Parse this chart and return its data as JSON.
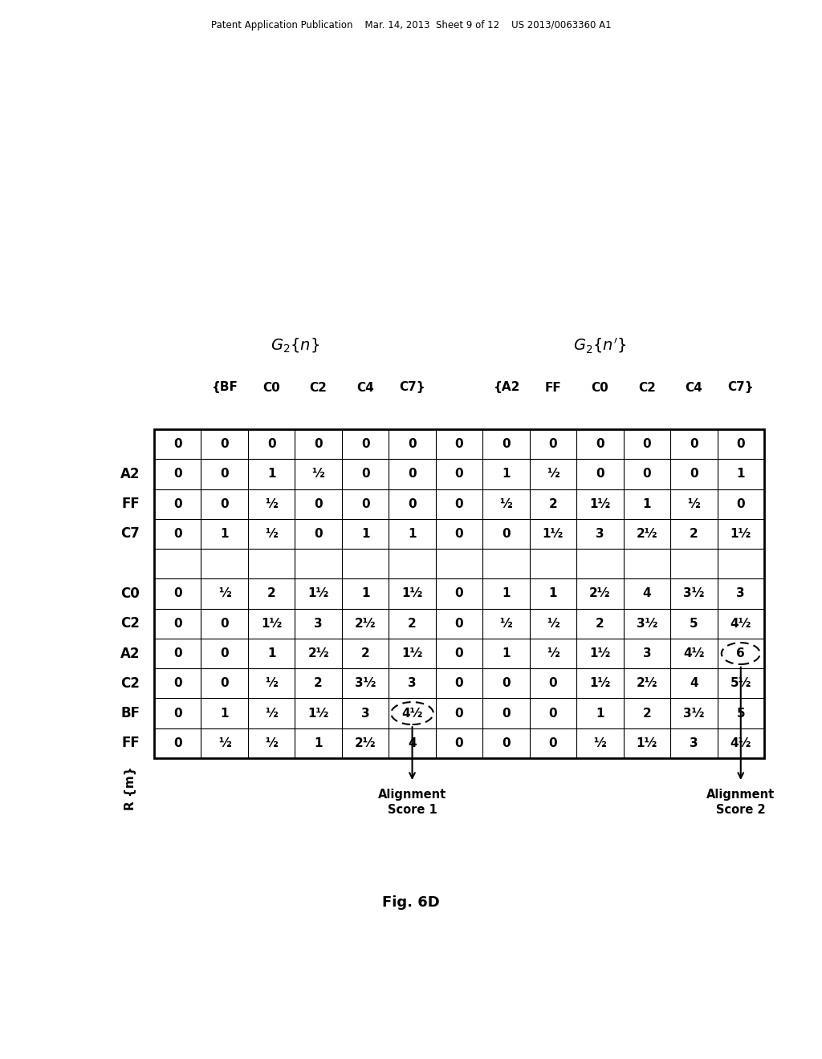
{
  "title_header_left": "Patent Application Publication",
  "title_header_mid": "Mar. 14, 2013  Sheet 9 of 12",
  "title_header_right": "US 2013/0063360 A1",
  "fig_label": "Fig. 6D",
  "col_headers_left": [
    "{BF",
    "C0",
    "C2",
    "C4",
    "C7}"
  ],
  "col_headers_right": [
    "{A2",
    "FF",
    "C0",
    "C2",
    "C4",
    "C7}"
  ],
  "row_headers": [
    "",
    "A2",
    "FF",
    "C7",
    "",
    "C0",
    "C2",
    "A2",
    "C2",
    "BF",
    "FF"
  ],
  "table_data": [
    [
      "0",
      "0",
      "0",
      "0",
      "0",
      "0",
      "0",
      "0",
      "0",
      "0",
      "0",
      "0",
      "0"
    ],
    [
      "0",
      "0",
      "1",
      "½",
      "0",
      "0",
      "0",
      "1",
      "½",
      "0",
      "0",
      "0",
      "1"
    ],
    [
      "0",
      "0",
      "½",
      "0",
      "0",
      "0",
      "0",
      "½",
      "2",
      "1½",
      "1",
      "½",
      "0"
    ],
    [
      "0",
      "1",
      "½",
      "0",
      "1",
      "1",
      "0",
      "0",
      "1½",
      "3",
      "2½",
      "2",
      "1½"
    ],
    [
      "",
      "",
      "",
      "",
      "",
      "",
      "",
      "",
      "",
      "",
      "",
      "",
      ""
    ],
    [
      "0",
      "½",
      "2",
      "1½",
      "1",
      "1½",
      "0",
      "1",
      "1",
      "2½",
      "4",
      "3½",
      "3"
    ],
    [
      "0",
      "0",
      "1½",
      "3",
      "2½",
      "2",
      "0",
      "½",
      "½",
      "2",
      "3½",
      "5",
      "4½"
    ],
    [
      "0",
      "0",
      "1",
      "2½",
      "2",
      "1½",
      "0",
      "1",
      "½",
      "1½",
      "3",
      "4½",
      "6"
    ],
    [
      "0",
      "0",
      "½",
      "2",
      "3½",
      "3",
      "0",
      "0",
      "0",
      "1½",
      "2½",
      "4",
      "5½"
    ],
    [
      "0",
      "1",
      "½",
      "1½",
      "3",
      "4½",
      "0",
      "0",
      "0",
      "1",
      "2",
      "3½",
      "5"
    ],
    [
      "0",
      "½",
      "½",
      "1",
      "2½",
      "4",
      "0",
      "0",
      "0",
      "½",
      "1½",
      "3",
      "4½"
    ]
  ],
  "circle1_row": 9,
  "circle1_col": 5,
  "circle2_row": 7,
  "circle2_col": 12,
  "alignment_score1_text": "Alignment\nScore 1",
  "alignment_score2_text": "Alignment\nScore 2"
}
